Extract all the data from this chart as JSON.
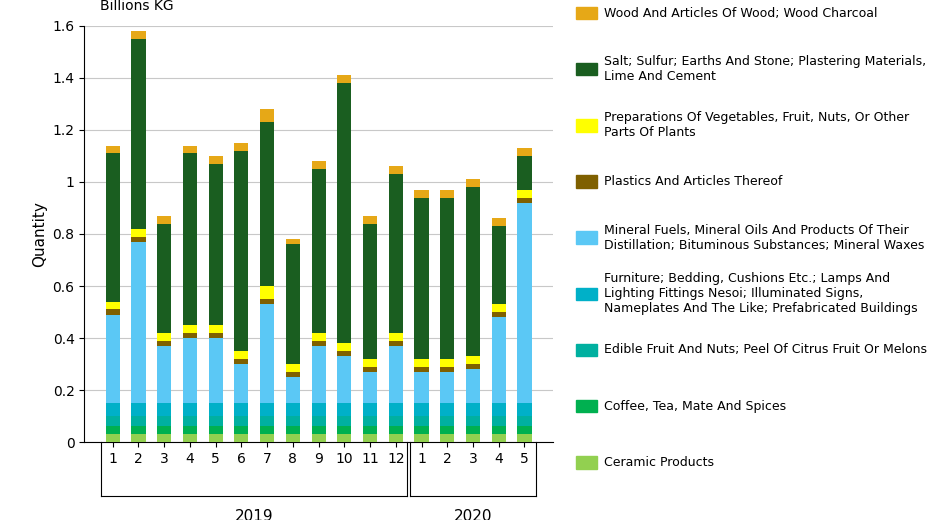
{
  "categories": [
    "1",
    "2",
    "3",
    "4",
    "5",
    "6",
    "7",
    "8",
    "9",
    "10",
    "11",
    "12",
    "1",
    "2",
    "3",
    "4",
    "5"
  ],
  "series": [
    {
      "name": "Ceramic Products",
      "color": "#92d050",
      "values": [
        0.03,
        0.03,
        0.03,
        0.03,
        0.03,
        0.03,
        0.03,
        0.03,
        0.03,
        0.03,
        0.03,
        0.03,
        0.03,
        0.03,
        0.03,
        0.03,
        0.03
      ]
    },
    {
      "name": "Coffee, Tea, Mate And Spices",
      "color": "#00b050",
      "values": [
        0.03,
        0.03,
        0.03,
        0.03,
        0.03,
        0.03,
        0.03,
        0.03,
        0.03,
        0.03,
        0.03,
        0.03,
        0.03,
        0.03,
        0.03,
        0.03,
        0.03
      ]
    },
    {
      "name": "Edible Fruit And Nuts; Peel Of Citrus Fruit Or Melons",
      "color": "#00b0a0",
      "values": [
        0.04,
        0.04,
        0.04,
        0.04,
        0.04,
        0.04,
        0.04,
        0.04,
        0.04,
        0.04,
        0.04,
        0.04,
        0.04,
        0.04,
        0.04,
        0.04,
        0.04
      ]
    },
    {
      "name": "Furniture; Bedding, Cushions Etc.; Lamps And Lighting Fittings Nesoi; Illuminated Signs, Nameplates And The Like; Prefabricated Buildings",
      "color": "#00b0c8",
      "values": [
        0.05,
        0.05,
        0.05,
        0.05,
        0.05,
        0.05,
        0.05,
        0.05,
        0.05,
        0.05,
        0.05,
        0.05,
        0.05,
        0.05,
        0.05,
        0.05,
        0.05
      ]
    },
    {
      "name": "Mineral Fuels, Mineral Oils And Products Of Their Distillation; Bituminous Substances; Mineral Waxes",
      "color": "#5bc8f5",
      "values": [
        0.34,
        0.62,
        0.22,
        0.25,
        0.25,
        0.15,
        0.38,
        0.1,
        0.22,
        0.18,
        0.12,
        0.22,
        0.12,
        0.12,
        0.13,
        0.33,
        0.77
      ]
    },
    {
      "name": "Plastics And Articles Thereof",
      "color": "#7f6000",
      "values": [
        0.02,
        0.02,
        0.02,
        0.02,
        0.02,
        0.02,
        0.02,
        0.02,
        0.02,
        0.02,
        0.02,
        0.02,
        0.02,
        0.02,
        0.02,
        0.02,
        0.02
      ]
    },
    {
      "name": "Preparations Of Vegetables, Fruit, Nuts, Or Other Parts Of Plants",
      "color": "#ffff00",
      "values": [
        0.03,
        0.03,
        0.03,
        0.03,
        0.03,
        0.03,
        0.05,
        0.03,
        0.03,
        0.03,
        0.03,
        0.03,
        0.03,
        0.03,
        0.03,
        0.03,
        0.03
      ]
    },
    {
      "name": "Salt; Sulfur; Earths And Stone; Plastering Materials, Lime And Cement",
      "color": "#1a5e20",
      "values": [
        0.57,
        0.73,
        0.42,
        0.66,
        0.62,
        0.77,
        0.63,
        0.46,
        0.63,
        1.0,
        0.52,
        0.61,
        0.62,
        0.62,
        0.65,
        0.3,
        0.13
      ]
    },
    {
      "name": "Wood And Articles Of Wood; Wood Charcoal",
      "color": "#e6a817",
      "values": [
        0.03,
        0.03,
        0.03,
        0.03,
        0.03,
        0.03,
        0.05,
        0.02,
        0.03,
        0.03,
        0.03,
        0.03,
        0.03,
        0.03,
        0.03,
        0.03,
        0.03
      ]
    }
  ],
  "ylabel": "Quantity",
  "ylabel2": "Billions KG",
  "ylim": [
    0,
    1.6
  ],
  "yticks": [
    0,
    0.2,
    0.4,
    0.6,
    0.8,
    1.0,
    1.2,
    1.4,
    1.6
  ],
  "background_color": "#ffffff",
  "grid_color": "#c8c8c8",
  "legend_entries": [
    {
      "name": "Wood And Articles Of Wood; Wood Charcoal",
      "color": "#e6a817"
    },
    {
      "name": "Salt; Sulfur; Earths And Stone; Plastering Materials,\nLime And Cement",
      "color": "#1a5e20"
    },
    {
      "name": "Preparations Of Vegetables, Fruit, Nuts, Or Other\nParts Of Plants",
      "color": "#ffff00"
    },
    {
      "name": "Plastics And Articles Thereof",
      "color": "#7f6000"
    },
    {
      "name": "Mineral Fuels, Mineral Oils And Products Of Their\nDistillation; Bituminous Substances; Mineral Waxes",
      "color": "#5bc8f5"
    },
    {
      "name": "Furniture; Bedding, Cushions Etc.; Lamps And\nLighting Fittings Nesoi; Illuminated Signs,\nNameplates And The Like; Prefabricated Buildings",
      "color": "#00b0c8"
    },
    {
      "name": "Edible Fruit And Nuts; Peel Of Citrus Fruit Or Melons",
      "color": "#00b0a0"
    },
    {
      "name": "Coffee, Tea, Mate And Spices",
      "color": "#00b050"
    },
    {
      "name": "Ceramic Products",
      "color": "#92d050"
    }
  ]
}
